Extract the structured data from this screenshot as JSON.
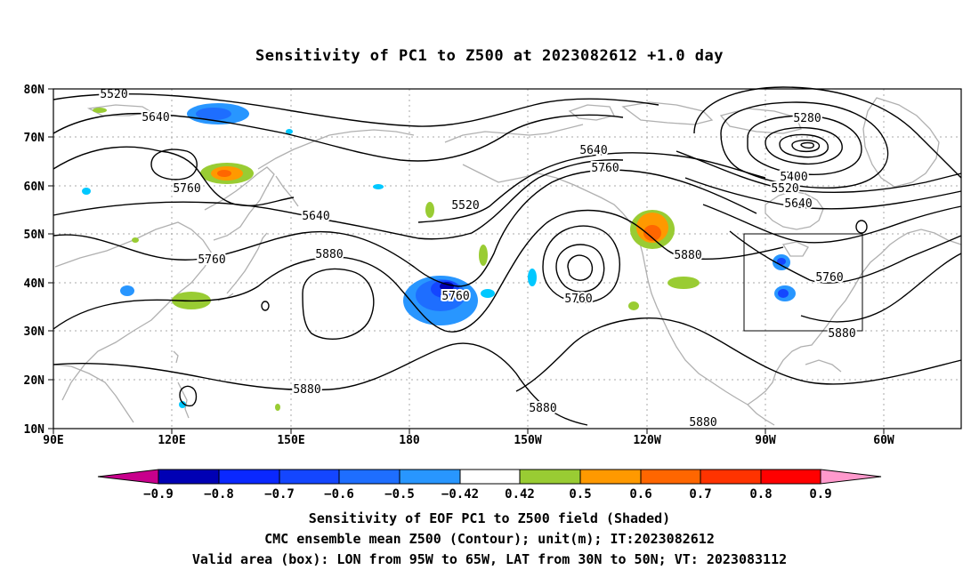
{
  "title": "Sensitivity of PC1 to Z500 at 2023082612 +1.0 day",
  "axes": {
    "lon_ticks": [
      "90E",
      "120E",
      "150E",
      "180",
      "150W",
      "120W",
      "90W",
      "60W"
    ],
    "lat_ticks": [
      "80N",
      "70N",
      "60N",
      "50N",
      "40N",
      "30N",
      "20N",
      "10N"
    ]
  },
  "contour_labels": [
    "5520",
    "5640",
    "5760",
    "5640",
    "5760",
    "5880",
    "5520",
    "5760",
    "5640",
    "5760",
    "5880",
    "5760",
    "5280",
    "5400",
    "5520",
    "5640",
    "5880",
    "5760",
    "5880",
    "5880",
    "5880"
  ],
  "colorbar": {
    "labels": [
      "−0.9",
      "−0.8",
      "−0.7",
      "−0.6",
      "−0.5",
      "−0.42",
      "0.42",
      "0.5",
      "0.6",
      "0.7",
      "0.8",
      "0.9"
    ],
    "colors": [
      "#c8008c",
      "#0000b4",
      "#0a28ff",
      "#1446ff",
      "#1e6eff",
      "#2896ff",
      "#00c8ff",
      "#ffffff",
      "#99cc33",
      "#ff9900",
      "#ff6600",
      "#ff3300",
      "#ff0000",
      "#ff99cc"
    ]
  },
  "footer": {
    "line1": "Sensitivity of EOF PC1 to Z500 field (Shaded)",
    "line2": "CMC ensemble mean Z500 (Contour); unit(m); IT:2023082612",
    "line3": "Valid area (box): LON from 95W to 65W, LAT from 30N to 50N; VT: 2023083112"
  }
}
